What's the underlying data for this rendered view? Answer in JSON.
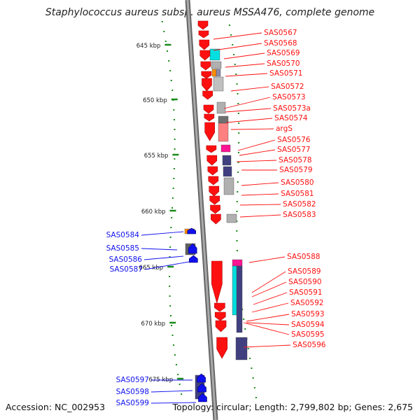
{
  "title": "Staphylococcus aureus subsp. aureus MSSA476, complete genome",
  "footer": {
    "accession": "Accession: NC_002953",
    "summary": "Topology: circular; Length: 2,799,802 bp; Genes: 2,675"
  },
  "colors": {
    "forward": "#ff1010",
    "reverse": "#1010ee",
    "backbone": "#8a8a8a",
    "ticks": "#1a8a1a"
  },
  "ticks": [
    {
      "label": "645 kbp"
    },
    {
      "label": "650 kbp"
    },
    {
      "label": "655 kbp"
    },
    {
      "label": "660 kbp"
    },
    {
      "label": "665 kbp"
    },
    {
      "label": "670 kbp"
    },
    {
      "label": "675 kbp"
    }
  ],
  "forward_genes": [
    "SAS0567",
    "SAS0568",
    "SAS0569",
    "SAS0570",
    "SAS0571",
    "SAS0572",
    "SAS0573",
    "SAS0573a",
    "SAS0574",
    "argS",
    "SAS0576",
    "SAS0577",
    "SAS0578",
    "SAS0579",
    "SAS0580",
    "SAS0581",
    "SAS0582",
    "SAS0583",
    "SAS0588",
    "SAS0589",
    "SAS0590",
    "SAS0591",
    "SAS0592",
    "SAS0593",
    "SAS0594",
    "SAS0595",
    "SAS0596"
  ],
  "reverse_genes": [
    "SAS0584",
    "SAS0585",
    "SAS0586",
    "SAS0587",
    "SAS0597",
    "SAS0598",
    "SAS0599"
  ]
}
